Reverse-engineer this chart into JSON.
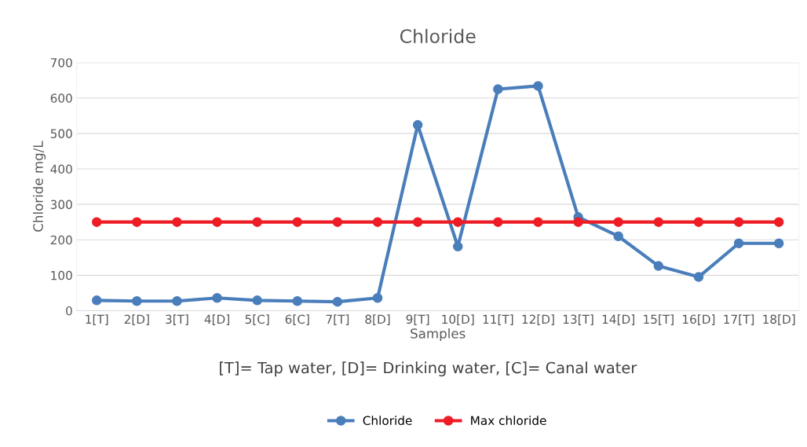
{
  "chart_data": {
    "type": "line",
    "title": "Chloride",
    "xlabel": "Samples",
    "ylabel": "Chloride mg/L",
    "annotations": [
      "[T]= Tap water, [D]= Drinking water, [C]= Canal water"
    ],
    "categories": [
      "1[T]",
      "2[D]",
      "3[T]",
      "4[D]",
      "5[C]",
      "6[C]",
      "7[T]",
      "8[D]",
      "9[T]",
      "10[D]",
      "11[T]",
      "12[D]",
      "13[T]",
      "14[D]",
      "15[T]",
      "16[D]",
      "17[T]",
      "18[D]"
    ],
    "series": [
      {
        "name": "Chloride",
        "color": "#4a7ebb",
        "values": [
          29,
          27,
          27,
          36,
          29,
          27,
          25,
          36,
          524,
          181,
          625,
          634,
          264,
          210,
          126,
          95,
          190,
          190
        ]
      },
      {
        "name": "Max chloride",
        "color": "#ee1c25",
        "values": [
          250,
          250,
          250,
          250,
          250,
          250,
          250,
          250,
          250,
          250,
          250,
          250,
          250,
          250,
          250,
          250,
          250,
          250
        ]
      }
    ],
    "ylim": [
      0,
      700
    ],
    "yticks": [
      0,
      100,
      200,
      300,
      400,
      500,
      600,
      700
    ],
    "grid": "y",
    "legend": "bottom",
    "marker": "circle",
    "line_style": "solid"
  }
}
